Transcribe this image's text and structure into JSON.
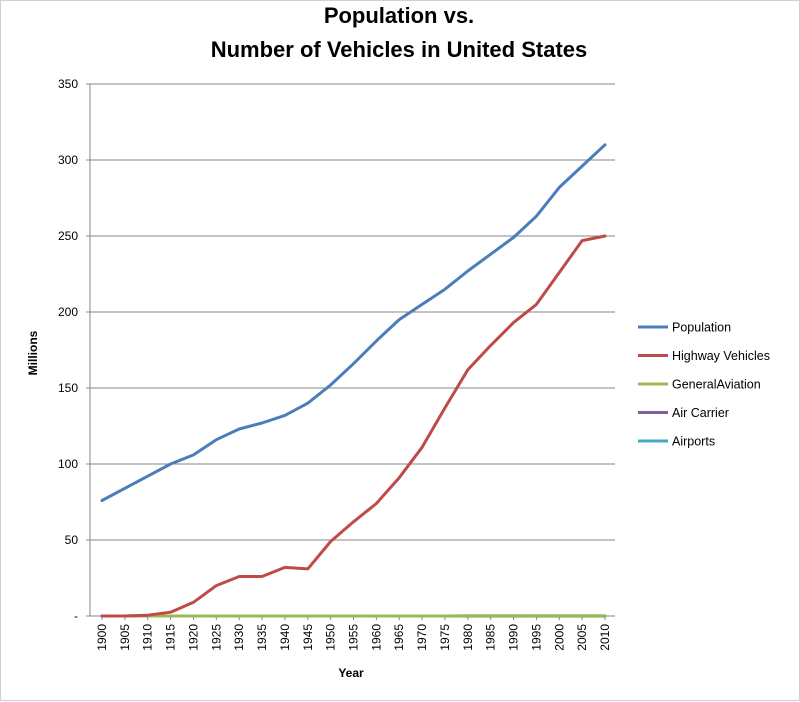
{
  "chart_data": {
    "type": "line",
    "title": [
      "Population vs.",
      "Number of Vehicles in United States"
    ],
    "xlabel": "Year",
    "ylabel": "Millions",
    "x": [
      "1900",
      "1905",
      "1910",
      "1915",
      "1920",
      "1925",
      "1930",
      "1935",
      "1940",
      "1945",
      "1950",
      "1955",
      "1960",
      "1965",
      "1970",
      "1975",
      "1980",
      "1985",
      "1990",
      "1995",
      "2000",
      "2005",
      "2010"
    ],
    "ylim": [
      0,
      350
    ],
    "yticks": [
      0,
      50,
      100,
      150,
      200,
      250,
      300,
      350
    ],
    "ytick_labels": [
      "-",
      "50",
      "100",
      "150",
      "200",
      "250",
      "300",
      "350"
    ],
    "grid": true,
    "legend_position": "right",
    "series": [
      {
        "name": "Population",
        "color": "#4a7ebb",
        "values": [
          76,
          84,
          92,
          100,
          106,
          116,
          123,
          127,
          132,
          140,
          152,
          166,
          181,
          195,
          205,
          215,
          227,
          238,
          249,
          263,
          282,
          296,
          310
        ]
      },
      {
        "name": "Highway Vehicles",
        "color": "#be4b48",
        "values": [
          0,
          0,
          0.5,
          2.5,
          9,
          20,
          26,
          26,
          32,
          31,
          49,
          62,
          74,
          91,
          111,
          137,
          162,
          178,
          193,
          205,
          226,
          247,
          250
        ]
      },
      {
        "name": "GeneralAviation",
        "color": "#98b954",
        "values": [
          0,
          0,
          0,
          0,
          0,
          0,
          0,
          0,
          0,
          0,
          0,
          0,
          0,
          0,
          0,
          0,
          0.2,
          0.2,
          0.2,
          0.2,
          0.2,
          0.2,
          0.2
        ]
      },
      {
        "name": "Air Carrier",
        "color": "#7d60a0",
        "values": [
          0,
          0,
          0,
          0,
          0,
          0,
          0,
          0,
          0,
          0,
          0,
          0,
          0,
          0,
          0,
          0,
          0,
          0,
          0,
          0,
          0,
          0,
          0
        ]
      },
      {
        "name": "Airports",
        "color": "#46aac5",
        "values": [
          0,
          0,
          0,
          0,
          0,
          0,
          0,
          0,
          0,
          0,
          0,
          0,
          0,
          0,
          0,
          0,
          0,
          0,
          0,
          0,
          0,
          0,
          0
        ]
      }
    ]
  }
}
